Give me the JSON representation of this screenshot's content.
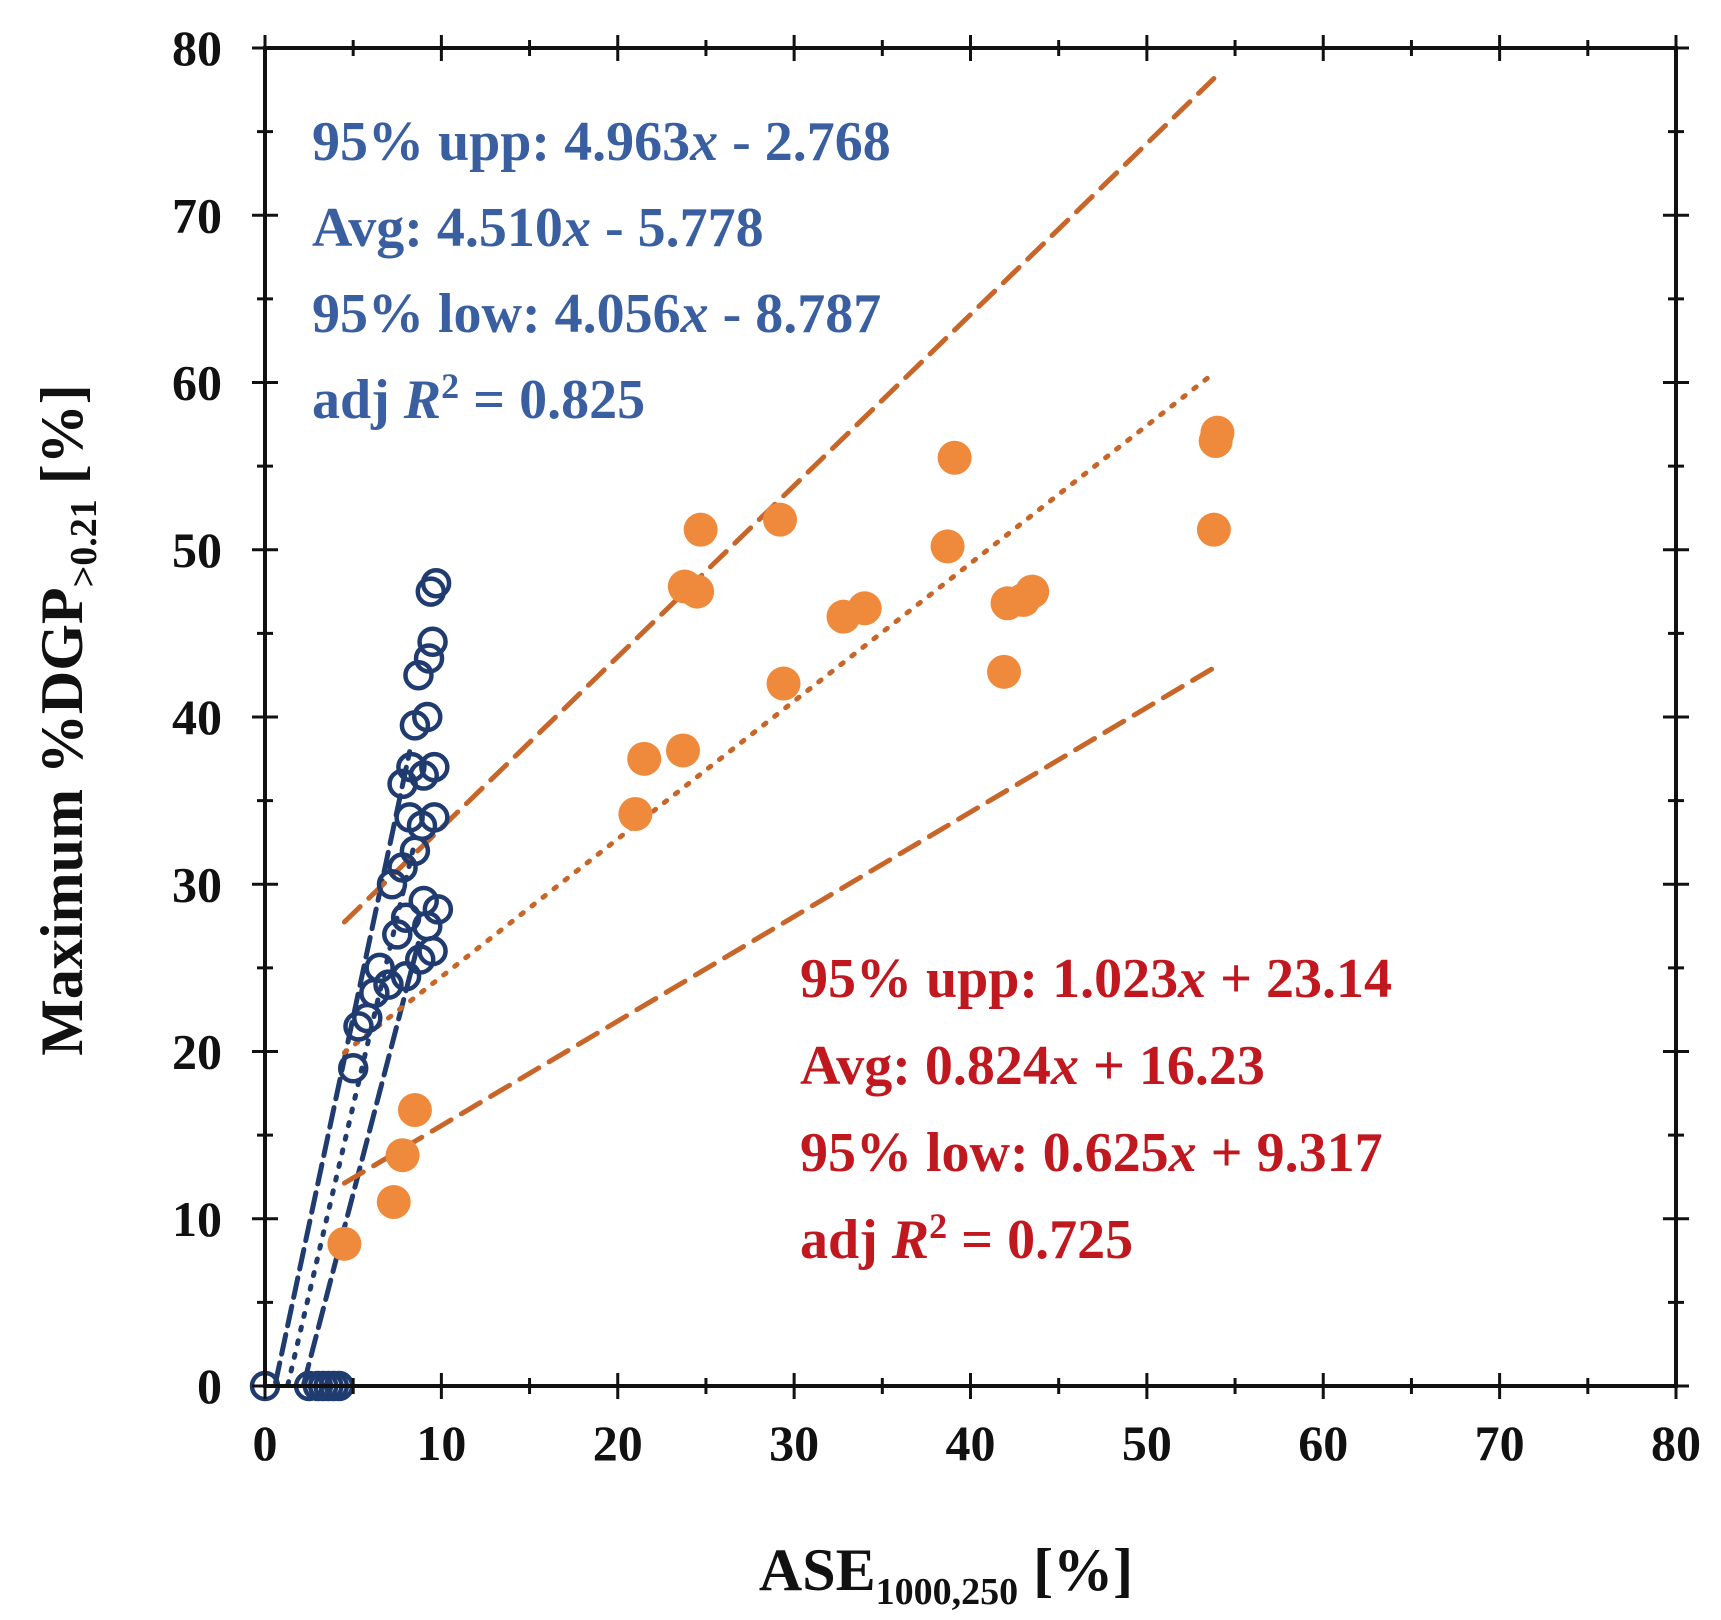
{
  "chart_data": {
    "type": "scatter",
    "title": "",
    "xlabel": {
      "main": "ASE",
      "sub": "1000,250",
      "unit": " [%]"
    },
    "ylabel": {
      "main": "Maximum %DGP",
      "sub": ">0.21",
      "unit": " [%]"
    },
    "xlim": [
      0,
      80
    ],
    "ylim": [
      0,
      80
    ],
    "xticks": [
      "0",
      "10",
      "20",
      "30",
      "40",
      "50",
      "60",
      "70",
      "80"
    ],
    "yticks": [
      "0",
      "10",
      "20",
      "30",
      "40",
      "50",
      "60",
      "70",
      "80"
    ],
    "series": [
      {
        "name": "blue",
        "marker": "open-circle",
        "color": "#1f3b70",
        "points": [
          [
            0,
            0
          ],
          [
            2.5,
            0
          ],
          [
            3,
            0
          ],
          [
            3.3,
            0
          ],
          [
            3.6,
            0
          ],
          [
            3.9,
            0
          ],
          [
            4.2,
            0
          ],
          [
            5,
            19
          ],
          [
            5.3,
            21.5
          ],
          [
            5.8,
            22
          ],
          [
            6.2,
            23.5
          ],
          [
            6.5,
            25
          ],
          [
            7,
            24
          ],
          [
            7.2,
            30
          ],
          [
            7.5,
            27
          ],
          [
            7.8,
            31
          ],
          [
            7.8,
            36
          ],
          [
            8,
            28
          ],
          [
            8,
            24.5
          ],
          [
            8.2,
            34
          ],
          [
            8.3,
            37
          ],
          [
            8.5,
            32
          ],
          [
            8.5,
            39.5
          ],
          [
            8.7,
            42.5
          ],
          [
            8.8,
            25.5
          ],
          [
            8.9,
            33.5
          ],
          [
            9,
            29
          ],
          [
            9,
            36.5
          ],
          [
            9.2,
            40
          ],
          [
            9.2,
            27.5
          ],
          [
            9.3,
            43.5
          ],
          [
            9.4,
            47.5
          ],
          [
            9.5,
            44.5
          ],
          [
            9.5,
            26
          ],
          [
            9.6,
            34
          ],
          [
            9.6,
            37
          ],
          [
            9.7,
            48
          ],
          [
            9.8,
            28.5
          ]
        ]
      },
      {
        "name": "orange",
        "marker": "filled-circle",
        "color": "#ef8a3c",
        "points": [
          [
            4.5,
            8.5
          ],
          [
            7.3,
            11
          ],
          [
            7.8,
            13.8
          ],
          [
            8.5,
            16.5
          ],
          [
            21,
            34.2
          ],
          [
            21.5,
            37.5
          ],
          [
            23.7,
            38
          ],
          [
            23.8,
            47.8
          ],
          [
            24.5,
            47.5
          ],
          [
            24.7,
            51.2
          ],
          [
            29.2,
            51.8
          ],
          [
            29.4,
            42
          ],
          [
            32.8,
            46
          ],
          [
            34,
            46.5
          ],
          [
            38.7,
            50.2
          ],
          [
            39.1,
            55.5
          ],
          [
            41.9,
            42.7
          ],
          [
            42.1,
            46.8
          ],
          [
            43,
            47
          ],
          [
            43.5,
            47.5
          ],
          [
            53.8,
            51.2
          ],
          [
            53.9,
            56.5
          ],
          [
            54,
            57
          ]
        ]
      }
    ],
    "fit_lines": [
      {
        "series": "blue",
        "kind": "95% upp",
        "slope": 4.963,
        "intercept": -2.768,
        "x_range": [
          0.6,
          8.2
        ],
        "style": "dashed",
        "color": "#1f3b70"
      },
      {
        "series": "blue",
        "kind": "Avg",
        "slope": 4.51,
        "intercept": -5.778,
        "x_range": [
          1.3,
          8.5
        ],
        "style": "dotted",
        "color": "#1f3b70"
      },
      {
        "series": "blue",
        "kind": "95% low",
        "slope": 4.056,
        "intercept": -8.787,
        "x_range": [
          2.2,
          8.8
        ],
        "style": "dashed",
        "color": "#1f3b70"
      },
      {
        "series": "orange",
        "kind": "95% upp",
        "slope": 1.023,
        "intercept": 23.14,
        "x_range": [
          4.5,
          53.8
        ],
        "style": "dashed",
        "color": "#c8662a"
      },
      {
        "series": "orange",
        "kind": "Avg",
        "slope": 0.824,
        "intercept": 16.23,
        "x_range": [
          4.5,
          53.8
        ],
        "style": "dotted",
        "color": "#c8662a"
      },
      {
        "series": "orange",
        "kind": "95% low",
        "slope": 0.625,
        "intercept": 9.317,
        "x_range": [
          4.5,
          53.8
        ],
        "style": "dashed",
        "color": "#c8662a"
      }
    ],
    "annotations": {
      "blue": {
        "color": "#3a5fa0",
        "lines": [
          {
            "prefix": "95% upp: 4.963",
            "var": "x",
            "suffix": " - 2.768"
          },
          {
            "prefix": "Avg: 4.510",
            "var": "x",
            "suffix": " - 5.778"
          },
          {
            "prefix": "95% low: 4.056",
            "var": "x",
            "suffix": " - 8.787"
          },
          {
            "prefix": "adj ",
            "var": "R",
            "sup": "2",
            "suffix": " = 0.825"
          }
        ]
      },
      "orange": {
        "color": "#c0181e",
        "lines": [
          {
            "prefix": "95% upp: 1.023",
            "var": "x",
            "suffix": " + 23.14"
          },
          {
            "prefix": "Avg: 0.824",
            "var": "x",
            "suffix": " + 16.23"
          },
          {
            "prefix": "95% low: 0.625",
            "var": "x",
            "suffix": " + 9.317"
          },
          {
            "prefix": "adj ",
            "var": "R",
            "sup": "2",
            "suffix": " = 0.725"
          }
        ]
      }
    }
  }
}
